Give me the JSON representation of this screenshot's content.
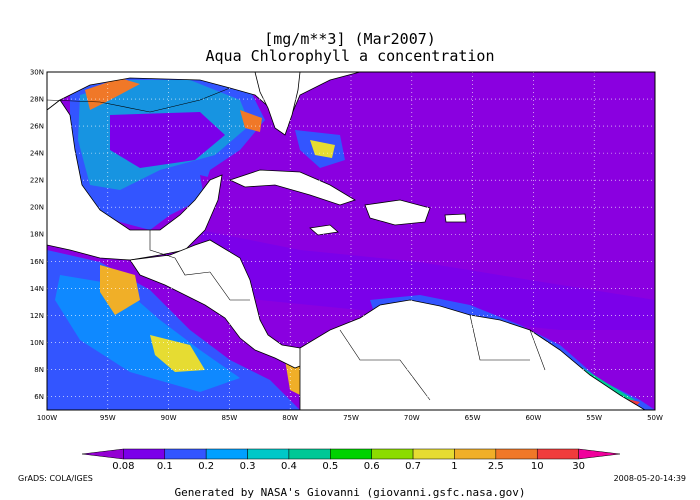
{
  "title": {
    "line1": "[mg/m**3] (Mar2007)",
    "line2": "Aqua Chlorophyll a concentration"
  },
  "map": {
    "lat_labels": [
      "30N",
      "28N",
      "26N",
      "24N",
      "22N",
      "20N",
      "18N",
      "16N",
      "14N",
      "12N",
      "10N",
      "8N",
      "6N"
    ],
    "lon_labels": [
      "100W",
      "95W",
      "90W",
      "85W",
      "80W",
      "75W",
      "70W",
      "65W",
      "60W",
      "55W",
      "50W"
    ],
    "lon_range": [
      -100,
      -50
    ],
    "lat_range": [
      5,
      30
    ]
  },
  "colorbar": {
    "labels": [
      "0.08",
      "0.1",
      "0.2",
      "0.3",
      "0.4",
      "0.5",
      "0.6",
      "0.7",
      "1",
      "2.5",
      "10",
      "30"
    ],
    "colors": [
      "#9400d3",
      "#7b00ea",
      "#3355ff",
      "#00a0ff",
      "#00c8c8",
      "#00c896",
      "#00d200",
      "#8cdc00",
      "#e6dc32",
      "#f0af28",
      "#f07828",
      "#f03c3c",
      "#f0009c"
    ]
  },
  "credits": {
    "left": "GrADS: COLA/IGES",
    "right": "2008-05-20-14:39",
    "footer": "Generated by NASA's Giovanni (giovanni.gsfc.nasa.gov)"
  }
}
